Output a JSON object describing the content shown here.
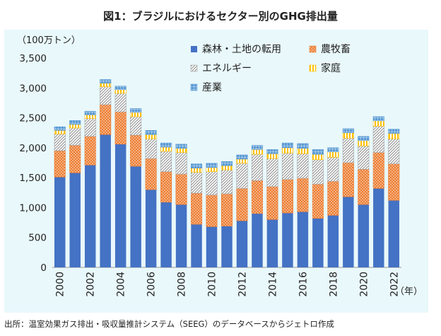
{
  "title": "図1：ブラジルにおけるセクター別のGHG排出量",
  "source": "出所：温室効果ガス排出・吸収量推計システム（SEEG）のデータベースからジェトロ作成",
  "chart_data": {
    "type": "bar",
    "stacked": true,
    "title": "図1：ブラジルにおけるセクター別のGHG排出量",
    "ylabel": "（100万トン）",
    "xlabel": "（年）",
    "ylim": [
      0,
      3500
    ],
    "yticks": [
      0,
      500,
      1000,
      1500,
      2000,
      2500,
      3000,
      3500
    ],
    "ytick_labels": [
      "0",
      "500",
      "1,000",
      "1,500",
      "2,000",
      "2,500",
      "3,000",
      "3,500"
    ],
    "categories": [
      "2000",
      "2001",
      "2002",
      "2003",
      "2004",
      "2005",
      "2006",
      "2007",
      "2008",
      "2009",
      "2010",
      "2011",
      "2012",
      "2013",
      "2014",
      "2015",
      "2016",
      "2017",
      "2018",
      "2019",
      "2020",
      "2021",
      "2022"
    ],
    "xtick_labels": [
      "2000",
      "",
      "2002",
      "",
      "2004",
      "",
      "2006",
      "",
      "2008",
      "",
      "2010",
      "",
      "2012",
      "",
      "2014",
      "",
      "2016",
      "",
      "2018",
      "",
      "2020",
      "",
      "2022"
    ],
    "legend_position": "top-right",
    "grid": false,
    "series": [
      {
        "name": "森林・土地の転用",
        "color": "#4472c4",
        "pattern": "solid",
        "values": [
          1510,
          1580,
          1710,
          2220,
          2060,
          1690,
          1300,
          1090,
          1050,
          720,
          680,
          690,
          780,
          900,
          800,
          910,
          930,
          820,
          870,
          1180,
          1050,
          1320,
          1120
        ]
      },
      {
        "name": "農牧畜",
        "color": "#ed7d31",
        "pattern": "dots",
        "values": [
          440,
          460,
          480,
          500,
          540,
          520,
          520,
          510,
          510,
          520,
          530,
          540,
          540,
          550,
          550,
          560,
          560,
          570,
          570,
          570,
          590,
          600,
          610
        ]
      },
      {
        "name": "エネルギー",
        "color": "#a5a5a5",
        "pattern": "hatch",
        "values": [
          280,
          290,
          300,
          300,
          310,
          310,
          330,
          340,
          360,
          350,
          390,
          400,
          420,
          440,
          470,
          440,
          410,
          410,
          400,
          410,
          390,
          440,
          420
        ]
      },
      {
        "name": "家庭",
        "color": "#ffc000",
        "pattern": "stripes",
        "values": [
          60,
          60,
          60,
          60,
          60,
          70,
          70,
          70,
          70,
          70,
          70,
          70,
          70,
          80,
          80,
          90,
          90,
          90,
          90,
          90,
          90,
          90,
          90
        ]
      },
      {
        "name": "産業",
        "color": "#5b9bd5",
        "pattern": "grid",
        "values": [
          60,
          65,
          60,
          60,
          60,
          65,
          70,
          70,
          70,
          70,
          70,
          70,
          70,
          70,
          70,
          80,
          80,
          80,
          70,
          70,
          70,
          70,
          70
        ]
      }
    ]
  }
}
